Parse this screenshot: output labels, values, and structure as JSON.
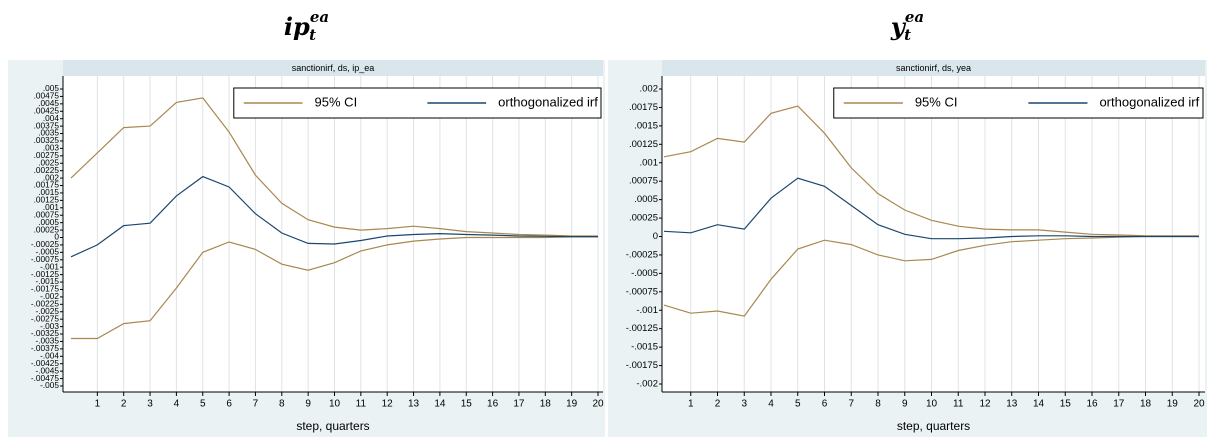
{
  "chart_data": [
    {
      "type": "line",
      "title": {
        "main": "ip",
        "sub": "t",
        "sup": "ea"
      },
      "subtitle": "sanctionirf, ds, ip_ea",
      "xlabel": "step, quarters",
      "x": [
        0,
        1,
        2,
        3,
        4,
        5,
        6,
        7,
        8,
        9,
        10,
        11,
        12,
        13,
        14,
        15,
        16,
        17,
        18,
        19,
        20
      ],
      "xlim": [
        0,
        20
      ],
      "xticks": [
        1,
        2,
        3,
        4,
        5,
        6,
        7,
        8,
        9,
        10,
        11,
        12,
        13,
        14,
        15,
        16,
        17,
        18,
        19,
        20
      ],
      "ylim": [
        -0.005,
        0.005
      ],
      "yticks": [
        {
          "value": 0.005,
          "label": ".005"
        },
        {
          "value": 0.00475,
          "label": ".00475"
        },
        {
          "value": 0.0045,
          "label": ".0045"
        },
        {
          "value": 0.00425,
          "label": ".00425"
        },
        {
          "value": 0.004,
          "label": ".004"
        },
        {
          "value": 0.00375,
          "label": ".00375"
        },
        {
          "value": 0.0035,
          "label": ".0035"
        },
        {
          "value": 0.00325,
          "label": ".00325"
        },
        {
          "value": 0.003,
          "label": ".003"
        },
        {
          "value": 0.00275,
          "label": ".00275"
        },
        {
          "value": 0.0025,
          "label": ".0025"
        },
        {
          "value": 0.00225,
          "label": ".00225"
        },
        {
          "value": 0.002,
          "label": ".002"
        },
        {
          "value": 0.00175,
          "label": ".00175"
        },
        {
          "value": 0.0015,
          "label": ".0015"
        },
        {
          "value": 0.00125,
          "label": ".00125"
        },
        {
          "value": 0.001,
          "label": ".001"
        },
        {
          "value": 0.00075,
          "label": ".00075"
        },
        {
          "value": 0.0005,
          "label": ".0005"
        },
        {
          "value": 0.00025,
          "label": ".00025"
        },
        0,
        {
          "value": -0.00025,
          "label": "-.00025"
        },
        {
          "value": -0.0005,
          "label": "-.0005"
        },
        {
          "value": -0.00075,
          "label": "-.00075"
        },
        {
          "value": -0.001,
          "label": "-.001"
        },
        {
          "value": -0.00125,
          "label": "-.00125"
        },
        {
          "value": -0.0015,
          "label": "-.0015"
        },
        {
          "value": -0.00175,
          "label": "-.00175"
        },
        {
          "value": -0.002,
          "label": "-.002"
        },
        {
          "value": -0.00225,
          "label": "-.00225"
        },
        {
          "value": -0.0025,
          "label": "-.0025"
        },
        {
          "value": -0.00275,
          "label": "-.00275"
        },
        {
          "value": -0.003,
          "label": "-.003"
        },
        {
          "value": -0.00325,
          "label": "-.00325"
        },
        {
          "value": -0.0035,
          "label": "-.0035"
        },
        {
          "value": -0.00375,
          "label": "-.00375"
        },
        {
          "value": -0.004,
          "label": "-.004"
        },
        {
          "value": -0.00425,
          "label": "-.00425"
        },
        {
          "value": -0.0045,
          "label": "-.0045"
        },
        {
          "value": -0.00475,
          "label": "-.00475"
        },
        {
          "value": -0.005,
          "label": "-.005"
        }
      ],
      "grid": "x",
      "legend": "top-right",
      "series": [
        {
          "name": "95% CI",
          "color": "#a8884f",
          "upper": [
            0.002,
            0.00285,
            0.0037,
            0.00375,
            0.00455,
            0.0047,
            0.00355,
            0.0021,
            0.00115,
            0.0006,
            0.00035,
            0.00025,
            0.0003,
            0.00038,
            0.0003,
            0.0002,
            0.00015,
            0.0001,
            8e-05,
            5e-05,
            5e-05
          ],
          "lower": [
            -0.0034,
            -0.0034,
            -0.0029,
            -0.0028,
            -0.0017,
            -0.0005,
            -0.00015,
            -0.0004,
            -0.0009,
            -0.0011,
            -0.00085,
            -0.00045,
            -0.00025,
            -0.00012,
            -5e-05,
            0,
            0,
            0,
            0,
            2e-05,
            2e-05
          ]
        },
        {
          "name": "orthogonalized irf",
          "color": "#1a476f",
          "values": [
            -0.00065,
            -0.00025,
            0.0004,
            0.00048,
            0.0014,
            0.00205,
            0.0017,
            0.0008,
            0.00015,
            -0.0002,
            -0.00022,
            -0.0001,
            5e-05,
            0.0001,
            0.00013,
            0.0001,
            8e-05,
            5e-05,
            4e-05,
            3e-05,
            3e-05
          ]
        }
      ]
    },
    {
      "type": "line",
      "title": {
        "main": "y",
        "sub": "t",
        "sup": "ea"
      },
      "subtitle": "sanctionirf, ds, yea",
      "xlabel": "step, quarters",
      "x": [
        0,
        1,
        2,
        3,
        4,
        5,
        6,
        7,
        8,
        9,
        10,
        11,
        12,
        13,
        14,
        15,
        16,
        17,
        18,
        19,
        20
      ],
      "xlim": [
        0,
        20
      ],
      "xticks": [
        1,
        2,
        3,
        4,
        5,
        6,
        7,
        8,
        9,
        10,
        11,
        12,
        13,
        14,
        15,
        16,
        17,
        18,
        19,
        20
      ],
      "ylim": [
        -0.002,
        0.002
      ],
      "yticks": [
        {
          "value": 0.002,
          "label": ".002"
        },
        {
          "value": 0.00175,
          "label": ".00175"
        },
        {
          "value": 0.0015,
          "label": ".0015"
        },
        {
          "value": 0.00125,
          "label": ".00125"
        },
        {
          "value": 0.001,
          "label": ".001"
        },
        {
          "value": 0.00075,
          "label": ".00075"
        },
        {
          "value": 0.0005,
          "label": ".0005"
        },
        {
          "value": 0.00025,
          "label": ".00025"
        },
        0,
        {
          "value": -0.00025,
          "label": "-.00025"
        },
        {
          "value": -0.0005,
          "label": "-.0005"
        },
        {
          "value": -0.00075,
          "label": "-.00075"
        },
        {
          "value": -0.001,
          "label": "-.001"
        },
        {
          "value": -0.00125,
          "label": "-.00125"
        },
        {
          "value": -0.0015,
          "label": "-.0015"
        },
        {
          "value": -0.00175,
          "label": "-.00175"
        },
        {
          "value": -0.002,
          "label": "-.002"
        }
      ],
      "grid": "x",
      "legend": "top-right",
      "series": [
        {
          "name": "95% CI",
          "color": "#a8884f",
          "upper": [
            0.00108,
            0.00115,
            0.00133,
            0.00128,
            0.00167,
            0.00177,
            0.0014,
            0.00093,
            0.00058,
            0.00036,
            0.00022,
            0.00014,
            0.0001,
            9e-05,
            9e-05,
            6e-05,
            3e-05,
            2e-05,
            1e-05,
            1e-05,
            1e-05
          ],
          "lower": [
            -0.00093,
            -0.00104,
            -0.00101,
            -0.00108,
            -0.00058,
            -0.00017,
            -5e-05,
            -0.00011,
            -0.00025,
            -0.00033,
            -0.00031,
            -0.00019,
            -0.00012,
            -7e-05,
            -5e-05,
            -3e-05,
            -2e-05,
            -1e-05,
            0,
            0,
            0
          ]
        },
        {
          "name": "orthogonalized irf",
          "color": "#1a476f",
          "values": [
            7e-05,
            5e-05,
            0.00016,
            0.0001,
            0.00052,
            0.00079,
            0.00068,
            0.00042,
            0.00016,
            3e-05,
            -3e-05,
            -3e-05,
            -2e-05,
            0,
            1e-05,
            1e-05,
            0,
            0,
            0,
            0,
            0
          ]
        }
      ]
    }
  ]
}
